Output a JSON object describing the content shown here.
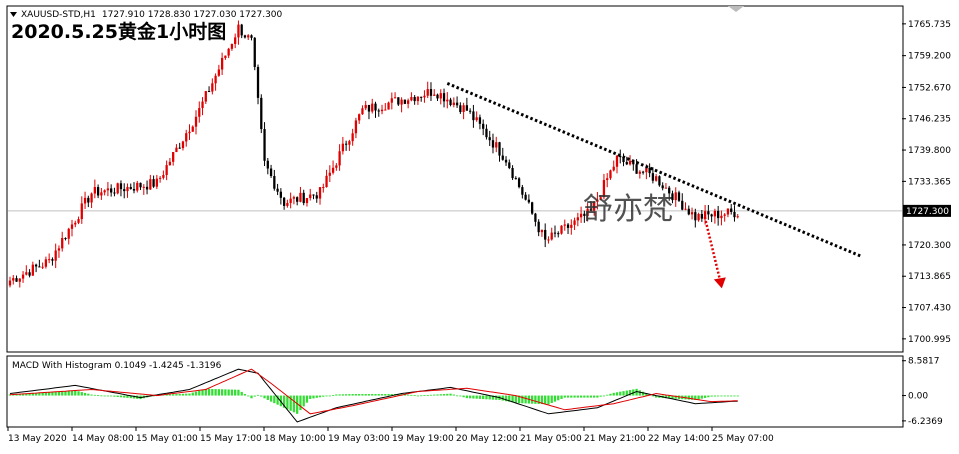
{
  "window": {
    "symbol_info": "XAUUSD-STD,H1",
    "ohlc": "1727.910 1728.830 1727.030 1727.300",
    "overlay_title": "2020.5.25黄金1小时图",
    "watermark": "舒亦梵"
  },
  "colors": {
    "bull": "#e00000",
    "bear": "#000000",
    "macd_line": "#000000",
    "signal_line": "#e00000",
    "histogram": "#33dd33",
    "trendline": "#000000",
    "arrow": "#e00000",
    "frame": "#000000"
  },
  "chart_data": [
    {
      "type": "candlestick",
      "title": "",
      "y_ticks": [
        "1765.735",
        "1759.200",
        "1752.670",
        "1746.235",
        "1739.800",
        "1733.365",
        "1727.300",
        "1720.300",
        "1713.865",
        "1707.430",
        "1700.995"
      ],
      "ylim": [
        1698.5,
        1769.2
      ],
      "current_price": "1727.300",
      "x_ticks": [
        "13 May 2020",
        "14 May 08:00",
        "15 May 01:00",
        "15 May 17:00",
        "18 May 10:00",
        "19 May 03:00",
        "19 May 19:00",
        "20 May 12:00",
        "21 May 05:00",
        "21 May 21:00",
        "22 May 14:00",
        "25 May 07:00"
      ],
      "key_levels": [
        {
          "bar": 0,
          "price": 1713
        },
        {
          "bar": 12,
          "price": 1717
        },
        {
          "bar": 25,
          "price": 1731
        },
        {
          "bar": 45,
          "price": 1733
        },
        {
          "bar": 58,
          "price": 1748
        },
        {
          "bar": 70,
          "price": 1765
        },
        {
          "bar": 74,
          "price": 1762
        },
        {
          "bar": 78,
          "price": 1737
        },
        {
          "bar": 84,
          "price": 1729
        },
        {
          "bar": 95,
          "price": 1731
        },
        {
          "bar": 108,
          "price": 1748
        },
        {
          "bar": 130,
          "price": 1752
        },
        {
          "bar": 140,
          "price": 1748
        },
        {
          "bar": 152,
          "price": 1738
        },
        {
          "bar": 164,
          "price": 1721
        },
        {
          "bar": 178,
          "price": 1727
        },
        {
          "bar": 186,
          "price": 1738
        },
        {
          "bar": 198,
          "price": 1734
        },
        {
          "bar": 210,
          "price": 1726
        },
        {
          "bar": 222,
          "price": 1727
        }
      ],
      "resistance_line": {
        "from": {
          "bar": 134,
          "price": 1753.5
        },
        "to": {
          "bar": 232,
          "price": 1722
        }
      },
      "projection_arrow": {
        "from": {
          "bar": 208,
          "price": 1726
        },
        "to": {
          "bar": 212,
          "price": 1712
        }
      }
    },
    {
      "type": "macd",
      "label": "MACD With Histogram 0.1049 -1.4245 -1.3196",
      "y_ticks": [
        "8.5817",
        "0.00",
        "-6.2369"
      ],
      "ylim": [
        -7.5,
        9.5
      ],
      "macd_keypoints": [
        [
          0,
          0.5
        ],
        [
          20,
          2.5
        ],
        [
          40,
          -0.5
        ],
        [
          55,
          1.5
        ],
        [
          70,
          6.5
        ],
        [
          76,
          5.5
        ],
        [
          88,
          -6.5
        ],
        [
          100,
          -3
        ],
        [
          120,
          0.5
        ],
        [
          135,
          2
        ],
        [
          150,
          -0.5
        ],
        [
          165,
          -4.5
        ],
        [
          180,
          -3
        ],
        [
          192,
          1
        ],
        [
          210,
          -2
        ],
        [
          222,
          -1.4
        ]
      ],
      "signal_keypoints": [
        [
          0,
          0.2
        ],
        [
          25,
          1.5
        ],
        [
          45,
          0
        ],
        [
          60,
          1.5
        ],
        [
          74,
          6.5
        ],
        [
          80,
          3
        ],
        [
          92,
          -4.5
        ],
        [
          105,
          -2.5
        ],
        [
          125,
          1
        ],
        [
          140,
          1.8
        ],
        [
          155,
          0
        ],
        [
          170,
          -3.5
        ],
        [
          185,
          -2
        ],
        [
          198,
          0.5
        ],
        [
          215,
          -1.5
        ],
        [
          222,
          -1.3
        ]
      ]
    }
  ]
}
